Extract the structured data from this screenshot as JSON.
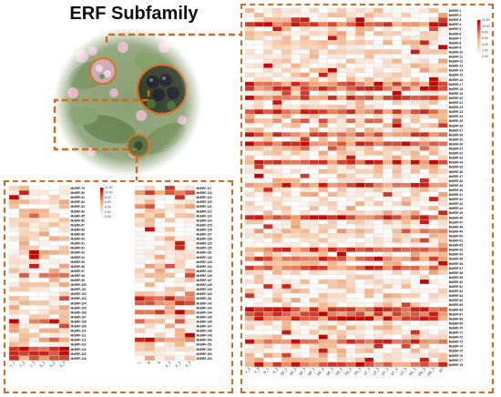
{
  "title": "ERF Subfamily",
  "photo": {
    "description_icon": "plant-photo-icon"
  },
  "colors": {
    "dashed_border": "#d2691e",
    "scale_low": "#ffffff",
    "scale_mid": "#f4b183",
    "scale_high": "#c00000"
  },
  "big_heatmap": {
    "legend_ticks": [
      "12.00",
      "10.00",
      "8.00",
      "6.00",
      "4.00",
      "2.00",
      "0.00"
    ],
    "columns": [
      "Y_2",
      "Y_3",
      "S_1",
      "S_2",
      "SF_1",
      "SF_2",
      "SF_3",
      "RF_1",
      "RF_2",
      "RF_3",
      "TR_1",
      "TR_2",
      "TR_3",
      "LF_1",
      "LF_2",
      "ST_1",
      "ST_2",
      "ST_3",
      "PE_1",
      "PE_2",
      "PE_3",
      "RT"
    ],
    "gene_prefix": "MeERF",
    "gene_count": 78
  },
  "small_heatmap": {
    "legend_ticks": [
      "12.00",
      "10.00",
      "8.00",
      "6.00",
      "4.00",
      "2.00",
      "0.00"
    ],
    "left_block": {
      "columns": [
        "Y_1",
        "Y_2",
        "Y_3",
        "S_1",
        "S_2",
        "S_3"
      ],
      "gene_start": 79,
      "gene_count": 38
    },
    "right_block": {
      "columns": [
        "L",
        "R",
        "S",
        "F_1",
        "F_2",
        "F_3"
      ],
      "gene_start": 117,
      "gene_count": 38
    }
  }
}
